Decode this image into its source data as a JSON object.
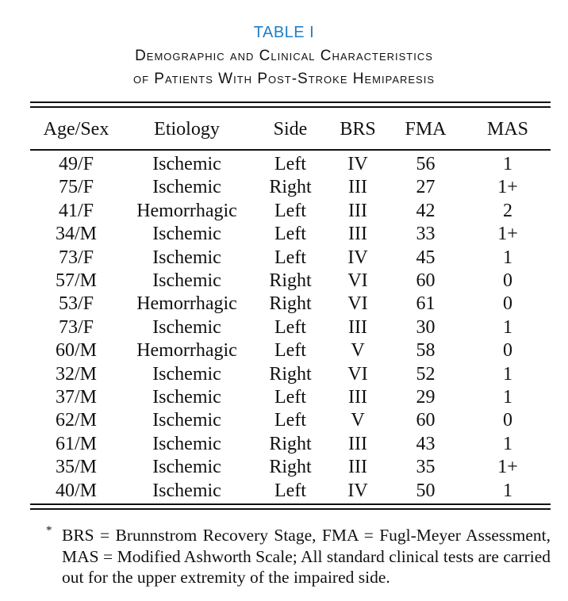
{
  "table_label": "TABLE I",
  "caption_line1": "Demographic and Clinical Characteristics",
  "caption_line2": "of Patients With Post-Stroke Hemiparesis",
  "colors": {
    "table_label": "#1f7fc7",
    "text": "#111111"
  },
  "columns": [
    "Age/Sex",
    "Etiology",
    "Side",
    "BRS",
    "FMA",
    "MAS"
  ],
  "rows": [
    [
      "49/F",
      "Ischemic",
      "Left",
      "IV",
      "56",
      "1"
    ],
    [
      "75/F",
      "Ischemic",
      "Right",
      "III",
      "27",
      "1+"
    ],
    [
      "41/F",
      "Hemorrhagic",
      "Left",
      "III",
      "42",
      "2"
    ],
    [
      "34/M",
      "Ischemic",
      "Left",
      "III",
      "33",
      "1+"
    ],
    [
      "73/F",
      "Ischemic",
      "Left",
      "IV",
      "45",
      "1"
    ],
    [
      "57/M",
      "Ischemic",
      "Right",
      "VI",
      "60",
      "0"
    ],
    [
      "53/F",
      "Hemorrhagic",
      "Right",
      "VI",
      "61",
      "0"
    ],
    [
      "73/F",
      "Ischemic",
      "Left",
      "III",
      "30",
      "1"
    ],
    [
      "60/M",
      "Hemorrhagic",
      "Left",
      "V",
      "58",
      "0"
    ],
    [
      "32/M",
      "Ischemic",
      "Right",
      "VI",
      "52",
      "1"
    ],
    [
      "37/M",
      "Ischemic",
      "Left",
      "III",
      "29",
      "1"
    ],
    [
      "62/M",
      "Ischemic",
      "Left",
      "V",
      "60",
      "0"
    ],
    [
      "61/M",
      "Ischemic",
      "Right",
      "III",
      "43",
      "1"
    ],
    [
      "35/M",
      "Ischemic",
      "Right",
      "III",
      "35",
      "1+"
    ],
    [
      "40/M",
      "Ischemic",
      "Left",
      "IV",
      "50",
      "1"
    ]
  ],
  "footnote_mark": "*",
  "footnote": "BRS = Brunnstrom Recovery Stage, FMA = Fugl-Meyer Assessment, MAS = Modified Ashworth Scale; All standard clinical tests are carried out for the upper extremity of the impaired side."
}
